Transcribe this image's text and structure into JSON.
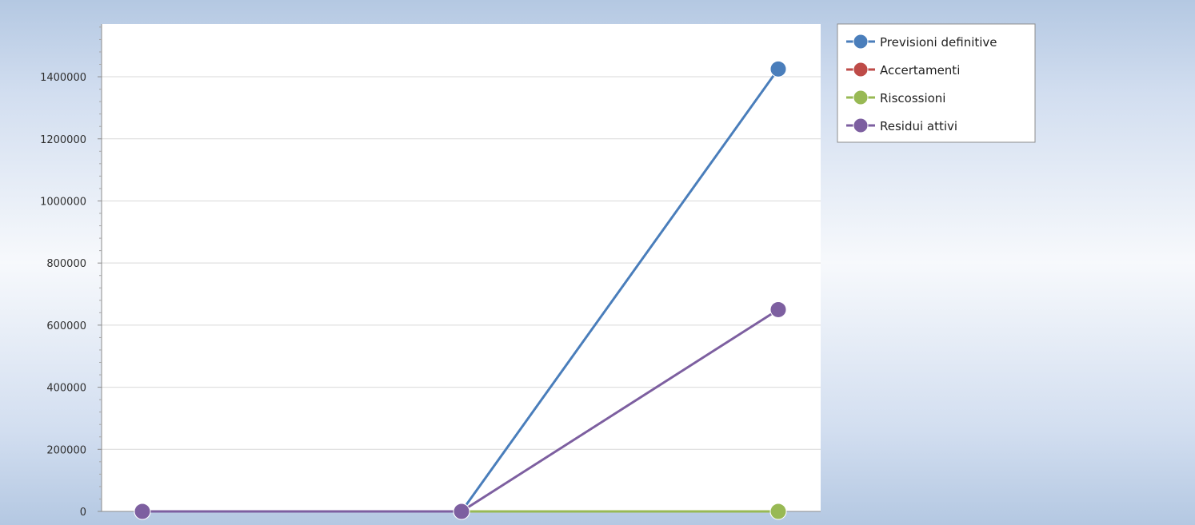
{
  "chart_data": {
    "type": "line",
    "categories": [
      "",
      "",
      ""
    ],
    "ylim": [
      0,
      1570000
    ],
    "y_ticks": [
      0,
      200000,
      400000,
      600000,
      800000,
      1000000,
      1200000,
      1400000
    ],
    "y_tick_labels": [
      "0",
      "200000",
      "400000",
      "600000",
      "800000",
      "1000000",
      "1200000",
      "1400000"
    ],
    "grid": true,
    "legend_position": "top-right, outside plot",
    "series": [
      {
        "name": "Previsioni definitive",
        "color": "#4a7ebb",
        "values": [
          0,
          0,
          1425000
        ]
      },
      {
        "name": "Accertamenti",
        "color": "#be4b48",
        "values": [
          0,
          0,
          0
        ]
      },
      {
        "name": "Riscossioni",
        "color": "#98b954",
        "values": [
          0,
          0,
          0
        ]
      },
      {
        "name": "Residui attivi",
        "color": "#7d5fa0",
        "values": [
          0,
          0,
          650000
        ]
      }
    ]
  }
}
